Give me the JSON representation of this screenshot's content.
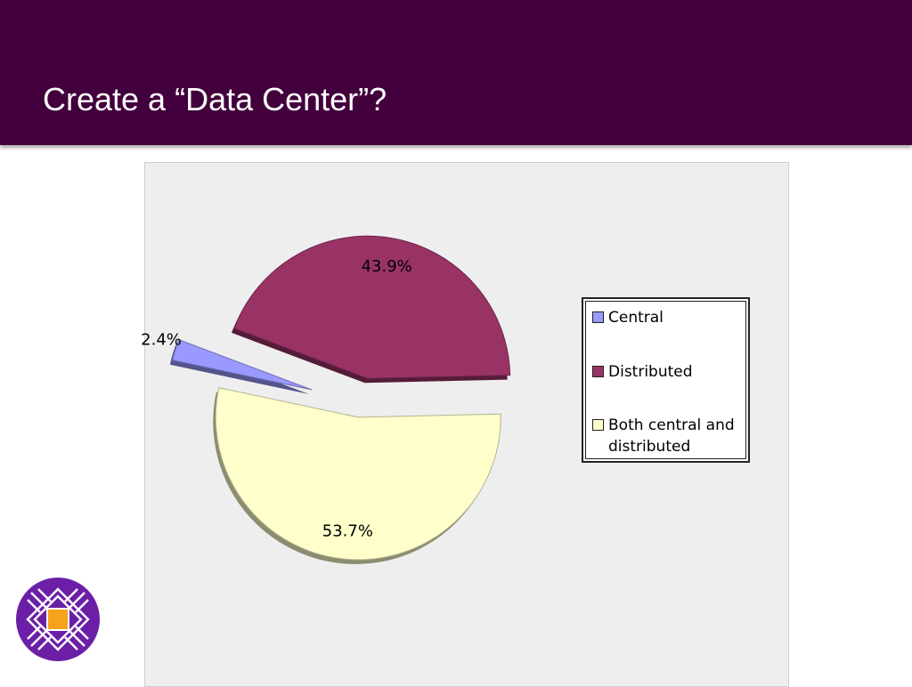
{
  "slide": {
    "title": "Create a “Data Center”?"
  },
  "colors": {
    "title_bar": "#42003c",
    "panel_bg": "#eeeeee",
    "logo_purple": "#6b1fa6",
    "logo_orange": "#f7a21b"
  },
  "logo": {
    "icon": "university-seal-icon"
  },
  "chart_data": {
    "type": "pie",
    "exploded": true,
    "legend_position": "right",
    "slices": [
      {
        "label": "Central",
        "value": 2.4,
        "display": "2.4%",
        "color": "#9999ff"
      },
      {
        "label": "Distributed",
        "value": 43.9,
        "display": "43.9%",
        "color": "#993366"
      },
      {
        "label": "Both central and distributed",
        "value": 53.7,
        "display": "53.7%",
        "color": "#ffffcc"
      }
    ]
  }
}
